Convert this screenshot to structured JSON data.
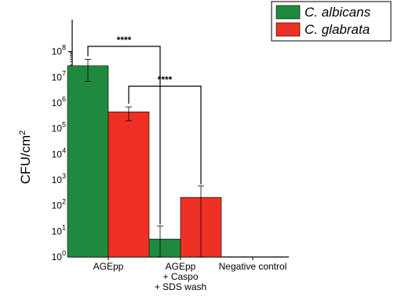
{
  "chart_data": {
    "type": "bar",
    "ylabel": "CFU/cm",
    "ylabel_sup": "2",
    "yscale": "log",
    "ylim": [
      1,
      1000000000
    ],
    "y_ticks": [
      {
        "base": "10",
        "exp": "0"
      },
      {
        "base": "10",
        "exp": "1"
      },
      {
        "base": "10",
        "exp": "2"
      },
      {
        "base": "10",
        "exp": "3"
      },
      {
        "base": "10",
        "exp": "4"
      },
      {
        "base": "10",
        "exp": "5"
      },
      {
        "base": "10",
        "exp": "6"
      },
      {
        "base": "10",
        "exp": "7"
      },
      {
        "base": "10",
        "exp": "8"
      }
    ],
    "categories": [
      {
        "lines": [
          "AGEpp"
        ]
      },
      {
        "lines": [
          "AGEpp",
          "+ Caspo",
          "+ SDS wash"
        ]
      },
      {
        "lines": [
          "Negative control"
        ]
      }
    ],
    "series": [
      {
        "name": "C. albicans",
        "color": "#1f8a3e",
        "values": [
          28000000,
          5,
          null
        ],
        "err_low": [
          7000000,
          1,
          null
        ],
        "err_high": [
          50000000,
          16,
          null
        ]
      },
      {
        "name": "C. glabrata",
        "color": "#ee3124",
        "values": [
          450000,
          210,
          null
        ],
        "err_low": [
          200000,
          1,
          null
        ],
        "err_high": [
          700000,
          580,
          null
        ]
      }
    ],
    "significance": [
      {
        "label": "****",
        "from": [
          0,
          0
        ],
        "to": [
          1,
          0
        ],
        "y": 160000000
      },
      {
        "label": "****",
        "from": [
          0,
          1
        ],
        "to": [
          1,
          1
        ],
        "y": 4500000
      }
    ],
    "legend_position": "top-right",
    "grid": false
  }
}
